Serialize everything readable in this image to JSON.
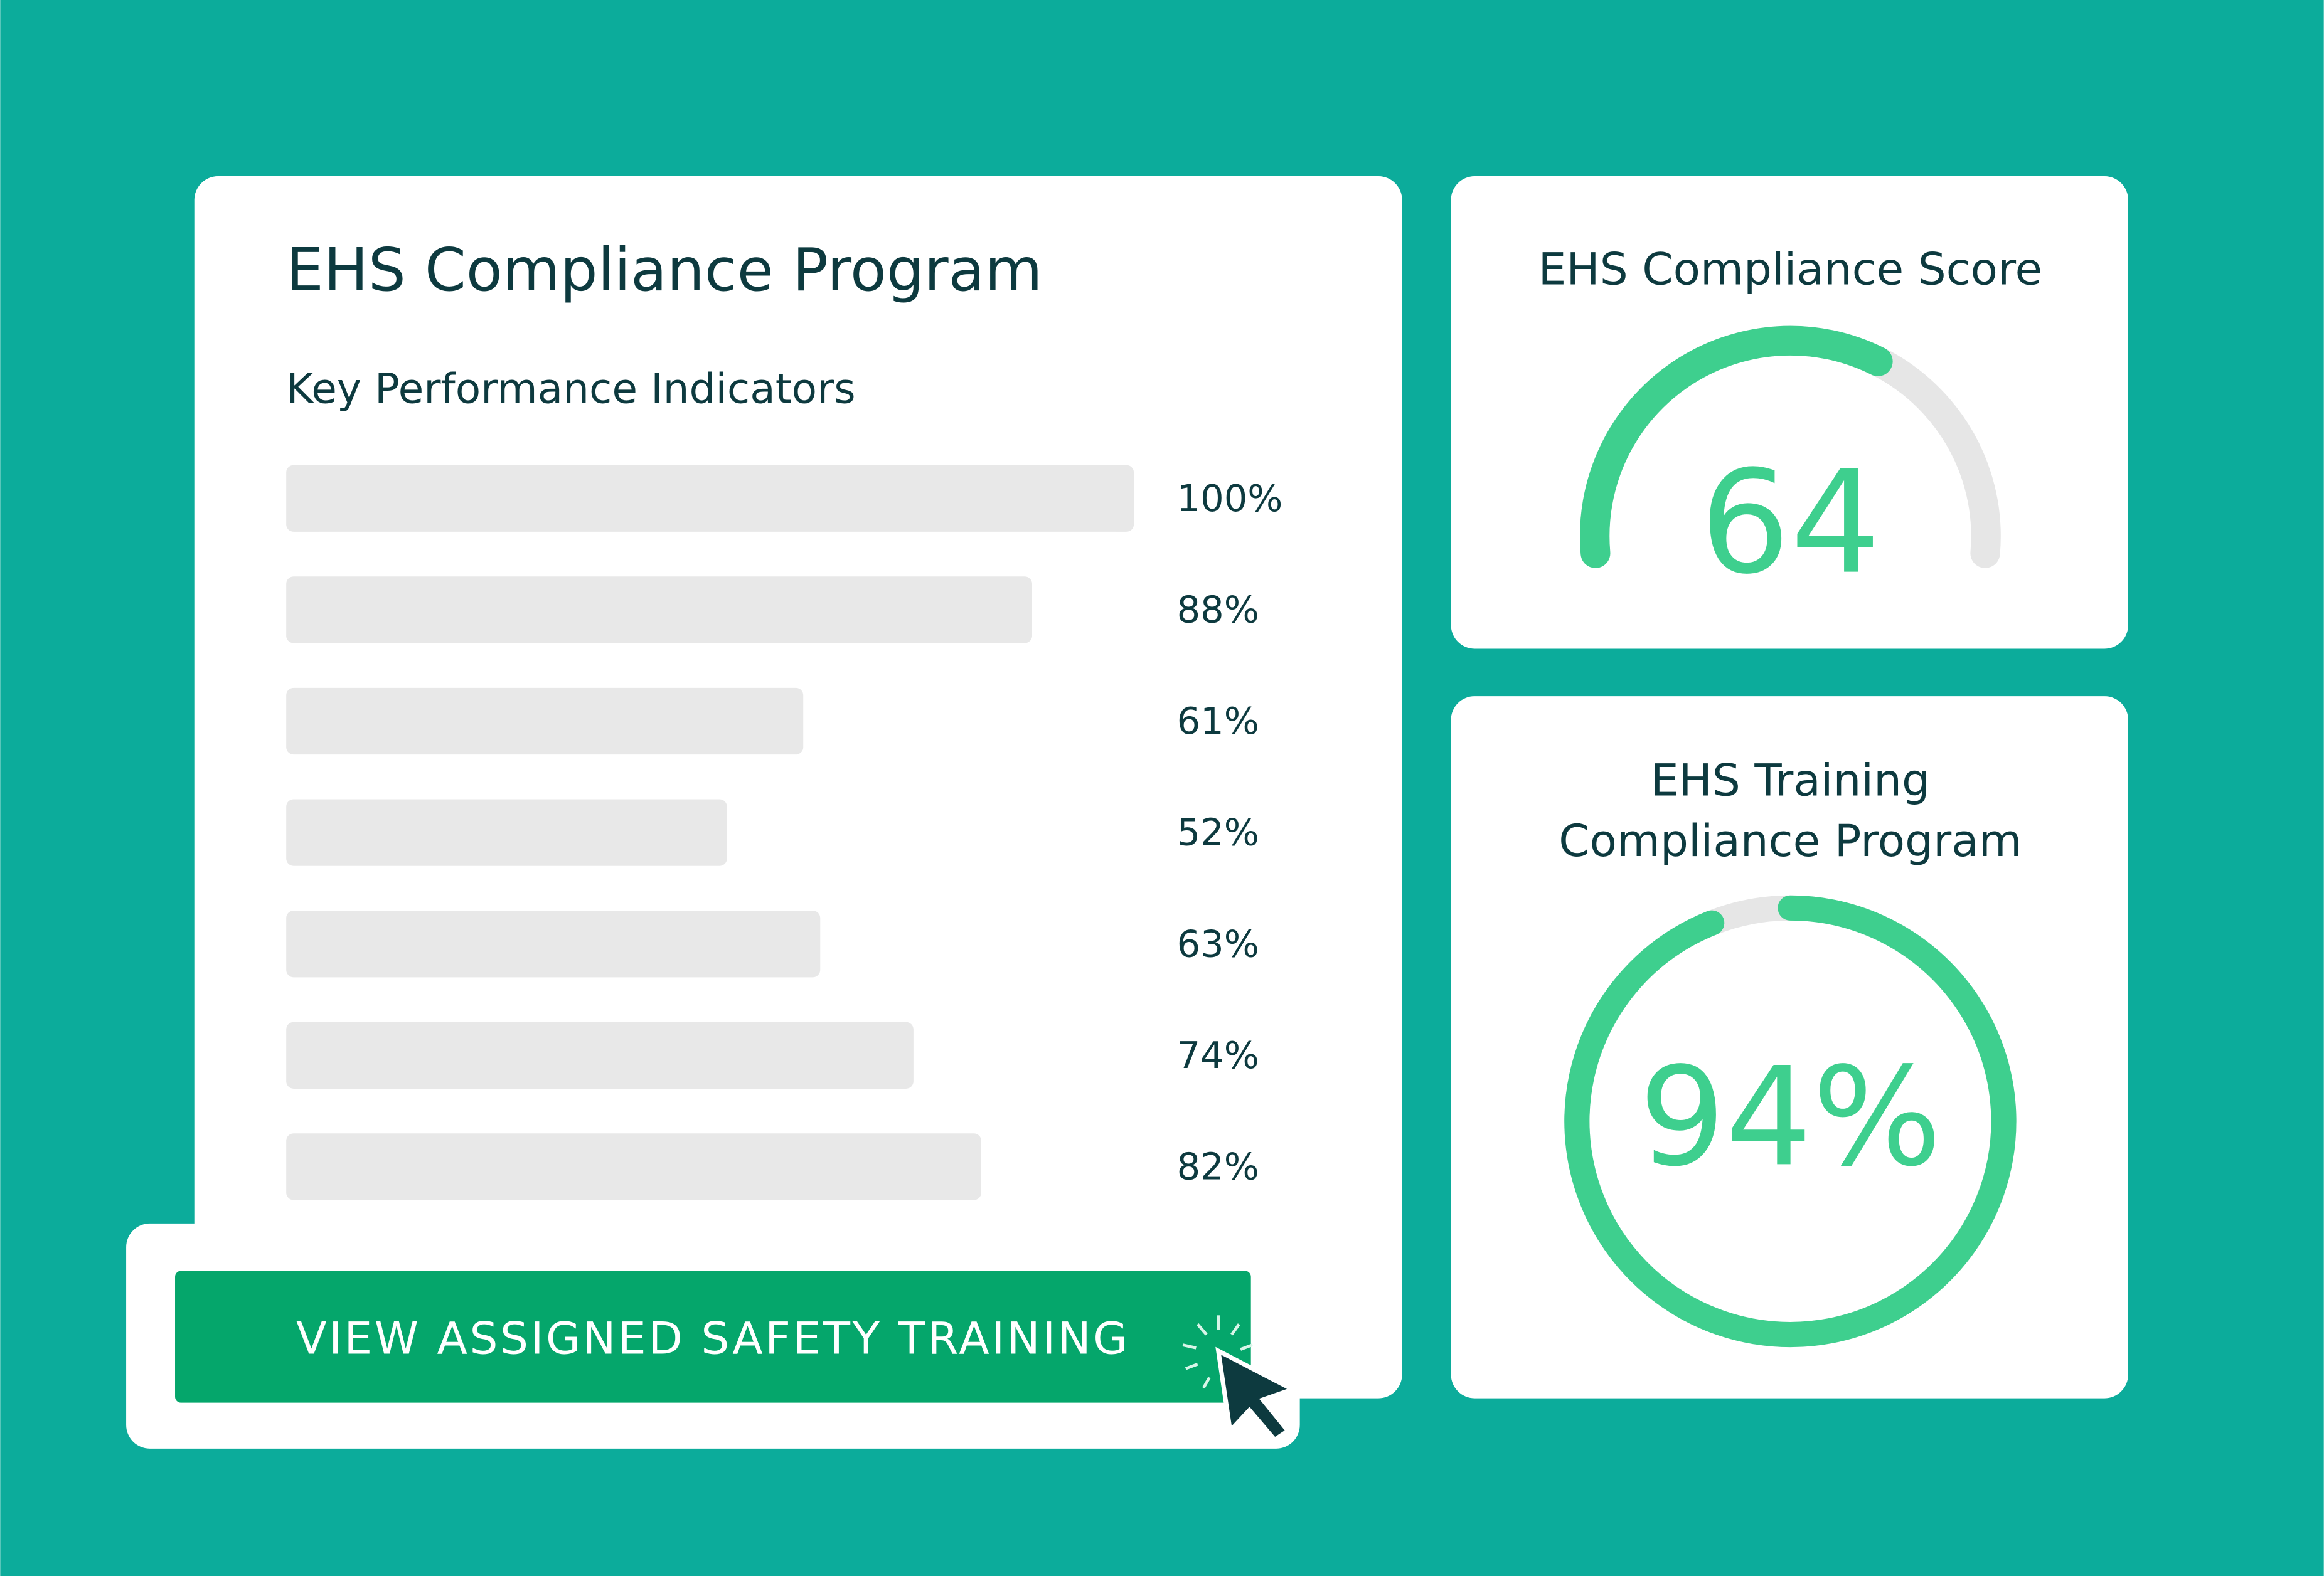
{
  "kpi_panel": {
    "title": "EHS Compliance Program",
    "subtitle": "Key Performance Indicators",
    "indicators": {
      "values": [
        100,
        88,
        61,
        52,
        63,
        74,
        82
      ],
      "value_labels": [
        "100%",
        "88%",
        "61%",
        "52%",
        "63%",
        "74%",
        "82%"
      ]
    }
  },
  "score_card": {
    "title": "EHS Compliance Score",
    "value": 64
  },
  "training_card": {
    "title_lines": [
      "EHS Training",
      "Compliance Program"
    ],
    "value": 94,
    "value_label": "94%"
  },
  "button": {
    "label": "VIEW ASSIGNED SAFETY TRAINING"
  }
}
